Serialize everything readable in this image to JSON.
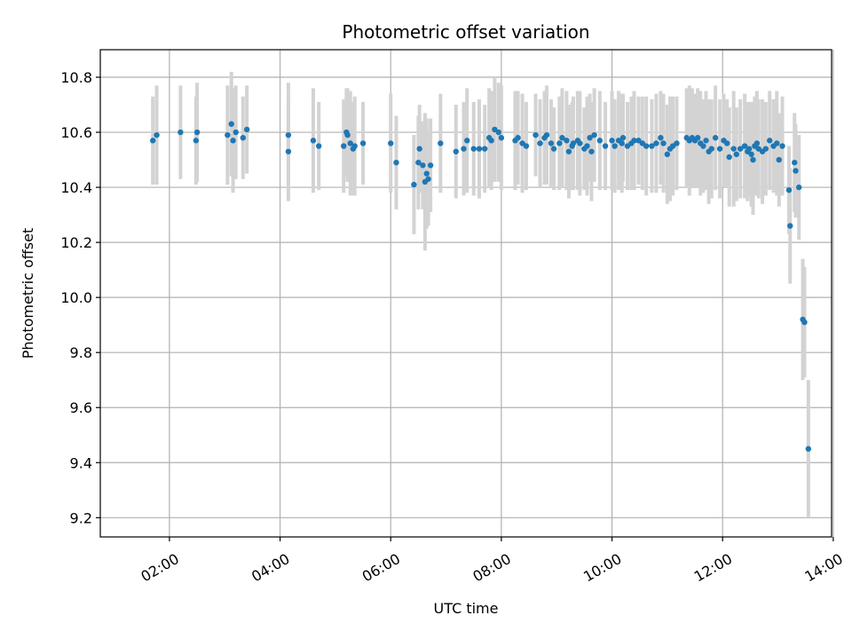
{
  "chart_data": {
    "type": "scatter",
    "title": "Photometric offset variation",
    "xlabel": "UTC time",
    "ylabel": "Photometric offset",
    "x_unit": "hours UTC",
    "xlim": [
      0.75,
      13.97
    ],
    "ylim": [
      9.13,
      10.9
    ],
    "grid": true,
    "x_ticks": [
      {
        "value": 2,
        "label": "02:00"
      },
      {
        "value": 4,
        "label": "04:00"
      },
      {
        "value": 6,
        "label": "06:00"
      },
      {
        "value": 8,
        "label": "08:00"
      },
      {
        "value": 10,
        "label": "10:00"
      },
      {
        "value": 12,
        "label": "12:00"
      },
      {
        "value": 14,
        "label": "14:00"
      }
    ],
    "y_ticks": [
      {
        "value": 9.2,
        "label": "9.2"
      },
      {
        "value": 9.4,
        "label": "9.4"
      },
      {
        "value": 9.6,
        "label": "9.6"
      },
      {
        "value": 9.8,
        "label": "9.8"
      },
      {
        "value": 10.0,
        "label": "10.0"
      },
      {
        "value": 10.2,
        "label": "10.2"
      },
      {
        "value": 10.4,
        "label": "10.4"
      },
      {
        "value": 10.6,
        "label": "10.6"
      },
      {
        "value": 10.8,
        "label": "10.8"
      }
    ],
    "colors": {
      "points": "#1f77b4",
      "errorbars": "#d3d3d3",
      "grid": "#b0b0b0"
    },
    "series": [
      {
        "x": [
          1.7,
          1.77,
          2.2,
          2.48,
          2.5,
          3.05,
          3.12,
          3.15,
          3.2,
          3.33,
          3.4,
          4.15,
          4.15,
          4.6,
          4.7,
          5.15,
          5.2,
          5.22,
          5.27,
          5.32,
          5.35,
          5.5,
          6.0,
          6.1,
          6.42,
          6.5,
          6.52,
          6.58,
          6.62,
          6.65,
          6.68,
          6.72,
          6.9,
          7.18,
          7.32,
          7.38,
          7.5,
          7.6,
          7.7,
          7.78,
          7.82,
          7.88,
          7.95,
          8.0,
          8.25,
          8.3,
          8.38,
          8.45,
          8.62,
          8.7,
          8.78,
          8.82,
          8.9,
          8.95,
          9.05,
          9.1,
          9.18,
          9.22,
          9.28,
          9.3,
          9.38,
          9.42,
          9.5,
          9.55,
          9.6,
          9.63,
          9.68,
          9.78,
          9.88,
          10.0,
          10.05,
          10.12,
          10.18,
          10.2,
          10.28,
          10.35,
          10.4,
          10.48,
          10.55,
          10.62,
          10.72,
          10.8,
          10.88,
          10.93,
          11.0,
          11.05,
          11.1,
          11.17,
          11.35,
          11.4,
          11.45,
          11.5,
          11.55,
          11.6,
          11.65,
          11.7,
          11.75,
          11.8,
          11.87,
          11.95,
          12.02,
          12.08,
          12.12,
          12.2,
          12.25,
          12.32,
          12.4,
          12.45,
          12.48,
          12.52,
          12.55,
          12.58,
          12.62,
          12.65,
          12.72,
          12.78,
          12.85,
          12.92,
          12.98,
          13.02,
          13.08,
          13.2,
          13.22,
          13.3,
          13.32,
          13.38,
          13.45,
          13.48,
          13.55
        ],
        "y": [
          10.57,
          10.59,
          10.6,
          10.57,
          10.6,
          10.59,
          10.63,
          10.57,
          10.6,
          10.58,
          10.61,
          10.59,
          10.53,
          10.57,
          10.55,
          10.55,
          10.6,
          10.59,
          10.56,
          10.54,
          10.55,
          10.56,
          10.56,
          10.49,
          10.41,
          10.49,
          10.54,
          10.48,
          10.42,
          10.45,
          10.43,
          10.48,
          10.56,
          10.53,
          10.54,
          10.57,
          10.54,
          10.54,
          10.54,
          10.58,
          10.57,
          10.61,
          10.6,
          10.58,
          10.57,
          10.58,
          10.56,
          10.55,
          10.59,
          10.56,
          10.58,
          10.59,
          10.56,
          10.54,
          10.56,
          10.58,
          10.57,
          10.53,
          10.55,
          10.56,
          10.57,
          10.56,
          10.54,
          10.55,
          10.58,
          10.53,
          10.59,
          10.57,
          10.55,
          10.57,
          10.55,
          10.57,
          10.56,
          10.58,
          10.55,
          10.56,
          10.57,
          10.57,
          10.56,
          10.55,
          10.55,
          10.56,
          10.58,
          10.56,
          10.52,
          10.54,
          10.55,
          10.56,
          10.58,
          10.57,
          10.58,
          10.57,
          10.58,
          10.56,
          10.55,
          10.57,
          10.53,
          10.54,
          10.58,
          10.54,
          10.57,
          10.56,
          10.51,
          10.54,
          10.52,
          10.54,
          10.55,
          10.53,
          10.54,
          10.52,
          10.5,
          10.55,
          10.56,
          10.54,
          10.53,
          10.54,
          10.57,
          10.55,
          10.56,
          10.5,
          10.55,
          10.39,
          10.26,
          10.49,
          10.46,
          10.4,
          9.92,
          9.91,
          9.45
        ],
        "err": [
          0.16,
          0.18,
          0.17,
          0.16,
          0.18,
          0.18,
          0.19,
          0.19,
          0.17,
          0.15,
          0.16,
          0.19,
          0.18,
          0.19,
          0.16,
          0.17,
          0.16,
          0.17,
          0.19,
          0.17,
          0.18,
          0.15,
          0.18,
          0.17,
          0.18,
          0.17,
          0.16,
          0.16,
          0.25,
          0.2,
          0.17,
          0.17,
          0.18,
          0.17,
          0.17,
          0.19,
          0.17,
          0.18,
          0.16,
          0.18,
          0.18,
          0.19,
          0.18,
          0.19,
          0.18,
          0.17,
          0.18,
          0.16,
          0.15,
          0.16,
          0.17,
          0.18,
          0.16,
          0.15,
          0.17,
          0.18,
          0.18,
          0.17,
          0.16,
          0.17,
          0.18,
          0.19,
          0.15,
          0.18,
          0.16,
          0.18,
          0.17,
          0.18,
          0.16,
          0.18,
          0.17,
          0.18,
          0.18,
          0.16,
          0.16,
          0.17,
          0.18,
          0.16,
          0.17,
          0.18,
          0.17,
          0.18,
          0.17,
          0.18,
          0.18,
          0.19,
          0.18,
          0.17,
          0.18,
          0.2,
          0.18,
          0.17,
          0.18,
          0.19,
          0.17,
          0.18,
          0.19,
          0.18,
          0.19,
          0.18,
          0.17,
          0.16,
          0.18,
          0.21,
          0.17,
          0.18,
          0.19,
          0.18,
          0.17,
          0.19,
          0.2,
          0.18,
          0.19,
          0.18,
          0.19,
          0.17,
          0.18,
          0.17,
          0.19,
          0.17,
          0.18,
          0.16,
          0.21,
          0.18,
          0.17,
          0.19,
          0.22,
          0.2,
          0.25
        ]
      }
    ]
  }
}
